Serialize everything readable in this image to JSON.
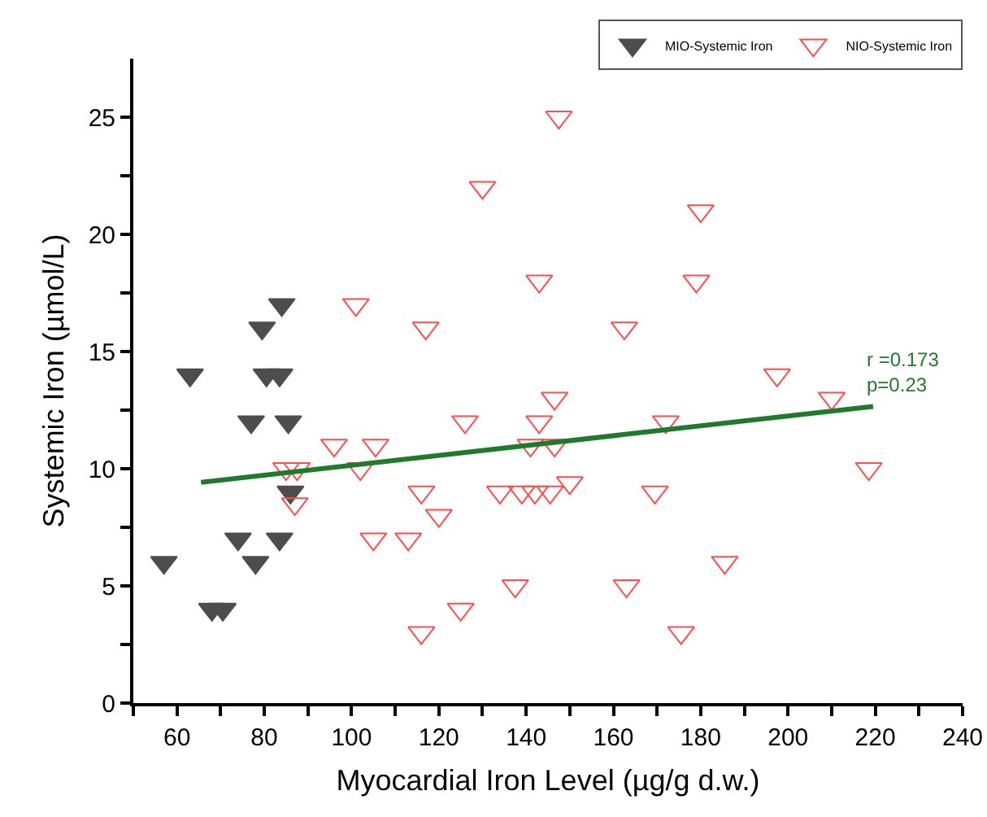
{
  "chart_data": {
    "type": "scatter",
    "xlabel": "Myocardial Iron Level (µg/g d.w.)",
    "ylabel": "Systemic Iron (µmol/L)",
    "xlim": [
      50,
      240
    ],
    "xticks": [
      {
        "value": 50,
        "label": null
      },
      60,
      {
        "value": 70,
        "label": null
      },
      80,
      {
        "value": 90,
        "label": null
      },
      100,
      {
        "value": 110,
        "label": null
      },
      120,
      {
        "value": 130,
        "label": null
      },
      140,
      {
        "value": 150,
        "label": null
      },
      160,
      {
        "value": 170,
        "label": null
      },
      180,
      {
        "value": 190,
        "label": null
      },
      200,
      {
        "value": 210,
        "label": null
      },
      220,
      {
        "value": 230,
        "label": null
      },
      240
    ],
    "ylim": [
      0,
      27.5
    ],
    "yticks": [
      0,
      {
        "value": 2.5,
        "label": null
      },
      5,
      {
        "value": 7.5,
        "label": null
      },
      10,
      {
        "value": 12.5,
        "label": null
      },
      15,
      {
        "value": 17.5,
        "label": null
      },
      20,
      {
        "value": 22.5,
        "label": null
      },
      25
    ],
    "grid": false,
    "legend": "top right",
    "marker": "triangle",
    "annotations": [
      "r =0.173\np=0.23"
    ],
    "series": [
      {
        "name": "MIO-Systemic Iron",
        "color": "#4d4d4d",
        "x": [
          57,
          63,
          79.5,
          84,
          80.5,
          83.5,
          77,
          85.5,
          86,
          74,
          83.5,
          78,
          68,
          70.5
        ],
        "values": [
          6,
          14,
          16,
          17,
          14,
          14,
          12,
          12,
          9,
          7,
          7,
          6,
          4,
          4
        ]
      },
      {
        "name": "NIO-Systemic Iron",
        "color": "#ff4d4d",
        "x": [
          147.5,
          130,
          143,
          101,
          117,
          146.5,
          126,
          143,
          96,
          105.5,
          141,
          146.5,
          85,
          87.5,
          102,
          87,
          116,
          134,
          139,
          142,
          145.5,
          150,
          120,
          105,
          113,
          137.5,
          125,
          116,
          180,
          179,
          162.5,
          197.5,
          210,
          172,
          218.5,
          169.5,
          185.5,
          163,
          175.5
        ],
        "values": [
          25,
          22,
          18,
          17,
          16,
          13,
          12,
          12,
          11,
          11,
          11,
          11,
          10,
          10,
          10,
          8.5,
          9,
          9,
          9,
          9,
          9,
          9.4,
          8,
          7,
          7,
          5,
          4,
          3,
          21,
          18,
          16,
          14,
          13,
          12,
          10,
          9,
          6,
          5,
          3
        ]
      },
      {
        "type": "line",
        "color": "#1f7a2e",
        "x": [
          65.5,
          219.5
        ],
        "values": [
          9.42,
          12.66
        ],
        "line_style": "solid",
        "marker": "none"
      }
    ]
  }
}
